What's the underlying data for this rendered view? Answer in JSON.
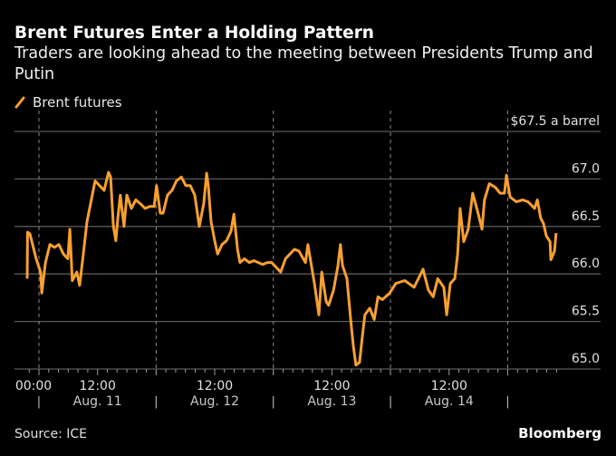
{
  "title": "Brent Futures Enter a Holding Pattern",
  "subtitle": "Traders are looking ahead to the meeting between Presidents Trump and Putin",
  "legend": {
    "label": "Brent futures",
    "icon": "line-swatch-icon"
  },
  "source": "Source: ICE",
  "brand": "Bloomberg",
  "colors": {
    "series": "#f7a030",
    "background": "#000000",
    "grid": "#5a5a5a",
    "text": "#e0e0e0"
  },
  "chart_data": {
    "type": "line",
    "title": "Brent Futures Enter a Holding Pattern",
    "ylabel_top": "$67.5 a barrel",
    "ylim": [
      65.0,
      67.5
    ],
    "yticks": [
      65.0,
      65.5,
      66.0,
      66.5,
      67.0,
      67.5
    ],
    "ytick_labels": [
      "65.0",
      "65.5",
      "66.0",
      "66.5",
      "67.0",
      "$67.5 a barrel"
    ],
    "xlim": [
      "08-10 20:30",
      "08-15 11:00"
    ],
    "x_time_labels": [
      {
        "t": "08-11 00:00",
        "label": "00:00"
      },
      {
        "t": "08-11 12:00",
        "label": "12:00"
      },
      {
        "t": "08-12 12:00",
        "label": "12:00"
      },
      {
        "t": "08-13 12:00",
        "label": "12:00"
      },
      {
        "t": "08-14 12:00",
        "label": "12:00"
      }
    ],
    "x_day_labels": [
      {
        "t": "08-11 12:00",
        "label": "Aug. 11"
      },
      {
        "t": "08-12 12:00",
        "label": "Aug. 12"
      },
      {
        "t": "08-13 12:00",
        "label": "Aug. 13"
      },
      {
        "t": "08-14 12:00",
        "label": "Aug. 14"
      }
    ],
    "day_separators": [
      "08-11 00:00",
      "08-12 00:00",
      "08-13 00:00",
      "08-14 00:00",
      "08-15 00:00"
    ],
    "grid": true,
    "legend_position": "top-left",
    "series": [
      {
        "name": "Brent futures",
        "points": [
          [
            "08-10 21:35",
            65.95
          ],
          [
            "08-10 21:40",
            66.44
          ],
          [
            "08-10 22:10",
            66.42
          ],
          [
            "08-10 23:25",
            66.16
          ],
          [
            "08-11 00:20",
            66.02
          ],
          [
            "08-11 00:35",
            65.8
          ],
          [
            "08-11 01:20",
            66.12
          ],
          [
            "08-11 02:15",
            66.31
          ],
          [
            "08-11 03:10",
            66.28
          ],
          [
            "08-11 04:05",
            66.31
          ],
          [
            "08-11 05:00",
            66.21
          ],
          [
            "08-11 05:55",
            66.16
          ],
          [
            "08-11 06:20",
            66.47
          ],
          [
            "08-11 06:50",
            65.93
          ],
          [
            "08-11 07:45",
            66.02
          ],
          [
            "08-11 08:20",
            65.88
          ],
          [
            "08-11 09:05",
            66.21
          ],
          [
            "08-11 09:50",
            66.55
          ],
          [
            "08-11 10:35",
            66.74
          ],
          [
            "08-11 11:30",
            66.98
          ],
          [
            "08-11 12:25",
            66.93
          ],
          [
            "08-11 13:20",
            66.88
          ],
          [
            "08-11 14:15",
            67.07
          ],
          [
            "08-11 14:40",
            67.02
          ],
          [
            "08-11 15:15",
            66.5
          ],
          [
            "08-11 15:45",
            66.35
          ],
          [
            "08-11 16:10",
            66.59
          ],
          [
            "08-11 16:40",
            66.83
          ],
          [
            "08-11 17:25",
            66.5
          ],
          [
            "08-11 18:00",
            66.83
          ],
          [
            "08-11 18:55",
            66.69
          ],
          [
            "08-11 19:50",
            66.78
          ],
          [
            "08-11 20:45",
            66.74
          ],
          [
            "08-11 21:45",
            66.69
          ],
          [
            "08-11 22:40",
            66.71
          ],
          [
            "08-11 23:35",
            66.71
          ],
          [
            "08-12 00:05",
            66.93
          ],
          [
            "08-12 00:50",
            66.64
          ],
          [
            "08-12 01:25",
            66.64
          ],
          [
            "08-12 02:20",
            66.83
          ],
          [
            "08-12 03:15",
            66.88
          ],
          [
            "08-12 04:10",
            66.98
          ],
          [
            "08-12 05:10",
            67.02
          ],
          [
            "08-12 06:05",
            66.93
          ],
          [
            "08-12 07:00",
            66.93
          ],
          [
            "08-12 07:55",
            66.83
          ],
          [
            "08-12 08:50",
            66.5
          ],
          [
            "08-12 09:45",
            66.74
          ],
          [
            "08-12 10:20",
            67.06
          ],
          [
            "08-12 10:40",
            66.93
          ],
          [
            "08-12 11:15",
            66.55
          ],
          [
            "08-12 12:00",
            66.35
          ],
          [
            "08-12 12:35",
            66.21
          ],
          [
            "08-12 13:30",
            66.31
          ],
          [
            "08-12 14:25",
            66.35
          ],
          [
            "08-12 15:20",
            66.45
          ],
          [
            "08-12 15:55",
            66.63
          ],
          [
            "08-12 16:40",
            66.26
          ],
          [
            "08-12 17:10",
            66.12
          ],
          [
            "08-12 18:05",
            66.16
          ],
          [
            "08-12 19:05",
            66.12
          ],
          [
            "08-12 20:00",
            66.14
          ],
          [
            "08-12 20:55",
            66.12
          ],
          [
            "08-12 21:50",
            66.1
          ],
          [
            "08-12 22:45",
            66.12
          ],
          [
            "08-12 23:40",
            66.12
          ],
          [
            "08-13 00:35",
            66.07
          ],
          [
            "08-13 01:30",
            66.02
          ],
          [
            "08-13 02:30",
            66.16
          ],
          [
            "08-13 03:25",
            66.21
          ],
          [
            "08-13 04:20",
            66.26
          ],
          [
            "08-13 05:15",
            66.24
          ],
          [
            "08-13 06:35",
            66.12
          ],
          [
            "08-13 07:05",
            66.31
          ],
          [
            "08-13 08:25",
            65.9
          ],
          [
            "08-13 09:20",
            65.57
          ],
          [
            "08-13 09:55",
            66.02
          ],
          [
            "08-13 10:50",
            65.71
          ],
          [
            "08-13 11:20",
            65.67
          ],
          [
            "08-13 12:20",
            65.83
          ],
          [
            "08-13 13:15",
            66.09
          ],
          [
            "08-13 13:45",
            66.31
          ],
          [
            "08-13 14:10",
            66.09
          ],
          [
            "08-13 15:05",
            65.95
          ],
          [
            "08-13 15:50",
            65.52
          ],
          [
            "08-13 16:25",
            65.23
          ],
          [
            "08-13 16:55",
            65.04
          ],
          [
            "08-13 17:40",
            65.07
          ],
          [
            "08-13 18:15",
            65.35
          ],
          [
            "08-13 18:45",
            65.57
          ],
          [
            "08-13 19:45",
            65.64
          ],
          [
            "08-13 20:40",
            65.52
          ],
          [
            "08-13 21:25",
            65.76
          ],
          [
            "08-13 22:20",
            65.73
          ],
          [
            "08-13 23:50",
            65.8
          ],
          [
            "08-14 01:05",
            65.9
          ],
          [
            "08-14 02:55",
            65.93
          ],
          [
            "08-14 04:50",
            65.86
          ],
          [
            "08-14 06:40",
            66.05
          ],
          [
            "08-14 07:45",
            65.83
          ],
          [
            "08-14 08:45",
            65.76
          ],
          [
            "08-14 09:40",
            65.95
          ],
          [
            "08-14 10:55",
            65.86
          ],
          [
            "08-14 11:30",
            65.57
          ],
          [
            "08-14 12:15",
            65.9
          ],
          [
            "08-14 13:10",
            65.95
          ],
          [
            "08-14 13:45",
            66.21
          ],
          [
            "08-14 14:15",
            66.69
          ],
          [
            "08-14 15:00",
            66.34
          ],
          [
            "08-14 15:55",
            66.47
          ],
          [
            "08-14 16:50",
            66.85
          ],
          [
            "08-14 17:50",
            66.66
          ],
          [
            "08-14 18:45",
            66.47
          ],
          [
            "08-14 19:15",
            66.78
          ],
          [
            "08-14 20:15",
            66.95
          ],
          [
            "08-14 21:30",
            66.91
          ],
          [
            "08-14 22:25",
            66.85
          ],
          [
            "08-14 23:20",
            66.85
          ],
          [
            "08-14 23:45",
            67.04
          ],
          [
            "08-15 00:30",
            66.81
          ],
          [
            "08-15 01:45",
            66.76
          ],
          [
            "08-15 03:05",
            66.78
          ],
          [
            "08-15 04:10",
            66.76
          ],
          [
            "08-15 05:30",
            66.69
          ],
          [
            "08-15 06:05",
            66.78
          ],
          [
            "08-15 06:45",
            66.59
          ],
          [
            "08-15 07:20",
            66.53
          ],
          [
            "08-15 07:55",
            66.4
          ],
          [
            "08-15 08:40",
            66.34
          ],
          [
            "08-15 08:50",
            66.15
          ],
          [
            "08-15 09:35",
            66.24
          ],
          [
            "08-15 09:55",
            66.43
          ]
        ]
      }
    ]
  }
}
